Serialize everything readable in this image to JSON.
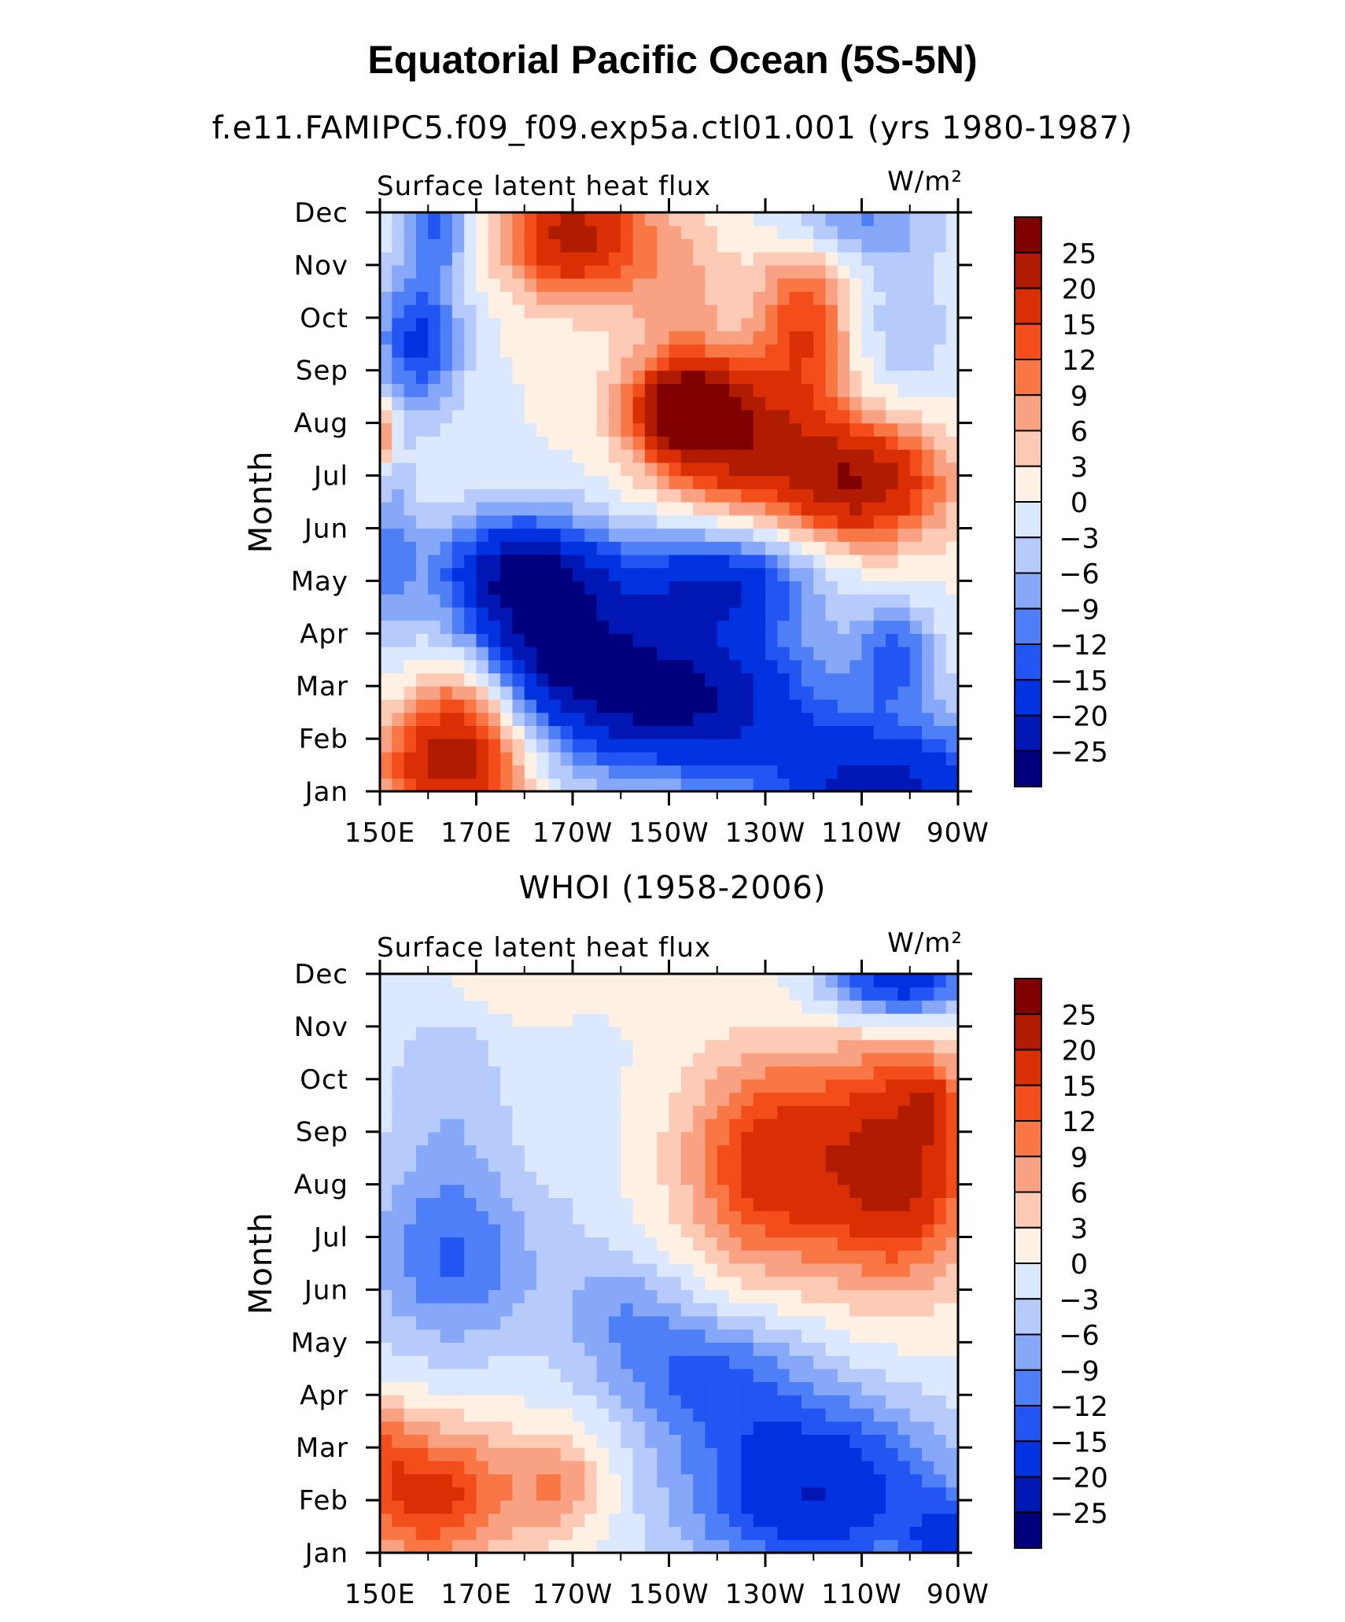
{
  "title": "Equatorial Pacific Ocean (5S-5N)",
  "colors": [
    "#00007f",
    "#0017b4",
    "#0033e0",
    "#2255f2",
    "#4f7ff7",
    "#87a8f8",
    "#b6cbfb",
    "#dbe8fd",
    "#fff0e4",
    "#fdcbb5",
    "#f9a283",
    "#f97645",
    "#f34d1c",
    "#da2e05",
    "#b01c02",
    "#800000"
  ],
  "chart_data": [
    {
      "type": "heatmap",
      "subtitle": "f.e11.FAMIPC5.f09_f09.exp5a.ctl01.001 (yrs 1980-1987)",
      "left_label": "Surface latent heat flux",
      "units": "W/m²",
      "ylabel": "Month",
      "y_ticks": [
        "Jan",
        "Feb",
        "Mar",
        "Apr",
        "May",
        "Jun",
        "Jul",
        "Aug",
        "Sep",
        "Oct",
        "Nov",
        "Dec"
      ],
      "x_ticks": [
        "150E",
        "170E",
        "170W",
        "150W",
        "130W",
        "110W",
        "90W"
      ],
      "xlim": [
        150,
        270
      ],
      "colorbar_levels": [
        "-25",
        "-20",
        "-15",
        "-12",
        "-9",
        "-6",
        "-3",
        "0",
        "3",
        "6",
        "9",
        "12",
        "15",
        "20",
        "25"
      ],
      "features": [
        {
          "lon": 255,
          "month": 1,
          "value": -22,
          "sx": 25,
          "sy": 1.4
        },
        {
          "lon": 165,
          "month": 1.5,
          "value": 22,
          "sx": 15,
          "sy": 1.1
        },
        {
          "lon": 168,
          "month": 2.8,
          "value": 11,
          "sx": 11,
          "sy": 1.1
        },
        {
          "lon": 210,
          "month": 2.8,
          "value": -27,
          "sx": 30,
          "sy": 1.5
        },
        {
          "lon": 185,
          "month": 3.8,
          "value": -16,
          "sx": 18,
          "sy": 1.2
        },
        {
          "lon": 180,
          "month": 5.2,
          "value": -24,
          "sx": 18,
          "sy": 1.1
        },
        {
          "lon": 152,
          "month": 5.6,
          "value": -9,
          "sx": 6,
          "sy": 1.6
        },
        {
          "lon": 220,
          "month": 5.0,
          "value": -18,
          "sx": 20,
          "sy": 1.0
        },
        {
          "lon": 257,
          "month": 3.6,
          "value": -12,
          "sx": 8,
          "sy": 0.9
        },
        {
          "lon": 250,
          "month": 6.9,
          "value": 24,
          "sx": 17,
          "sy": 1.2
        },
        {
          "lon": 224,
          "month": 7.6,
          "value": 18,
          "sx": 17,
          "sy": 1.3
        },
        {
          "lon": 214,
          "month": 8.3,
          "value": 27,
          "sx": 12,
          "sy": 0.9
        },
        {
          "lon": 238,
          "month": 9.8,
          "value": 15,
          "sx": 10,
          "sy": 1.6
        },
        {
          "lon": 190,
          "month": 11.6,
          "value": 22,
          "sx": 14,
          "sy": 1.2
        },
        {
          "lon": 212,
          "month": 10.5,
          "value": 7,
          "sx": 12,
          "sy": 1.6
        },
        {
          "lon": 258,
          "month": 9.8,
          "value": -5,
          "sx": 12,
          "sy": 1.8
        },
        {
          "lon": 158,
          "month": 9.6,
          "value": -16,
          "sx": 9,
          "sy": 1.4
        },
        {
          "lon": 162,
          "month": 11.8,
          "value": -12,
          "sx": 7,
          "sy": 0.9
        },
        {
          "lon": 248,
          "month": 11.8,
          "value": -9,
          "sx": 16,
          "sy": 0.7
        },
        {
          "lon": 150,
          "month": 7.8,
          "value": 12,
          "sx": 3,
          "sy": 0.7
        }
      ]
    },
    {
      "type": "heatmap",
      "subtitle": "WHOI (1958-2006)",
      "left_label": "Surface latent heat flux",
      "units": "W/m²",
      "ylabel": "Month",
      "y_ticks": [
        "Jan",
        "Feb",
        "Mar",
        "Apr",
        "May",
        "Jun",
        "Jul",
        "Aug",
        "Sep",
        "Oct",
        "Nov",
        "Dec"
      ],
      "x_ticks": [
        "150E",
        "170E",
        "170W",
        "150W",
        "130W",
        "110W",
        "90W"
      ],
      "xlim": [
        150,
        270
      ],
      "colorbar_levels": [
        "-25",
        "-20",
        "-15",
        "-12",
        "-9",
        "-6",
        "-3",
        "0",
        "3",
        "6",
        "9",
        "12",
        "15",
        "20",
        "25"
      ],
      "features": [
        {
          "lon": 160,
          "month": 2.1,
          "value": 17,
          "sx": 18,
          "sy": 1.3
        },
        {
          "lon": 188,
          "month": 2.3,
          "value": 8,
          "sx": 10,
          "sy": 1.0
        },
        {
          "lon": 240,
          "month": 2.2,
          "value": -20,
          "sx": 28,
          "sy": 1.8
        },
        {
          "lon": 268,
          "month": 1.0,
          "value": -14,
          "sx": 8,
          "sy": 1.0
        },
        {
          "lon": 218,
          "month": 4.4,
          "value": -11,
          "sx": 20,
          "sy": 1.2
        },
        {
          "lon": 165,
          "month": 6.6,
          "value": -12,
          "sx": 18,
          "sy": 1.8
        },
        {
          "lon": 200,
          "month": 5.6,
          "value": -7,
          "sx": 14,
          "sy": 1.2
        },
        {
          "lon": 232,
          "month": 8.4,
          "value": 18,
          "sx": 18,
          "sy": 2.0
        },
        {
          "lon": 258,
          "month": 8.4,
          "value": 21,
          "sx": 15,
          "sy": 2.2
        },
        {
          "lon": 264,
          "month": 9.6,
          "value": 7,
          "sx": 5,
          "sy": 0.7
        },
        {
          "lon": 164,
          "month": 9.8,
          "value": -5,
          "sx": 14,
          "sy": 2.0
        },
        {
          "lon": 192,
          "month": 9.0,
          "value": -2,
          "sx": 8,
          "sy": 2.5
        },
        {
          "lon": 258,
          "month": 11.9,
          "value": -20,
          "sx": 15,
          "sy": 0.8
        },
        {
          "lon": 180,
          "month": 11.7,
          "value": 3,
          "sx": 20,
          "sy": 0.6
        },
        {
          "lon": 150,
          "month": 3.2,
          "value": 6,
          "sx": 6,
          "sy": 0.8
        }
      ]
    }
  ]
}
